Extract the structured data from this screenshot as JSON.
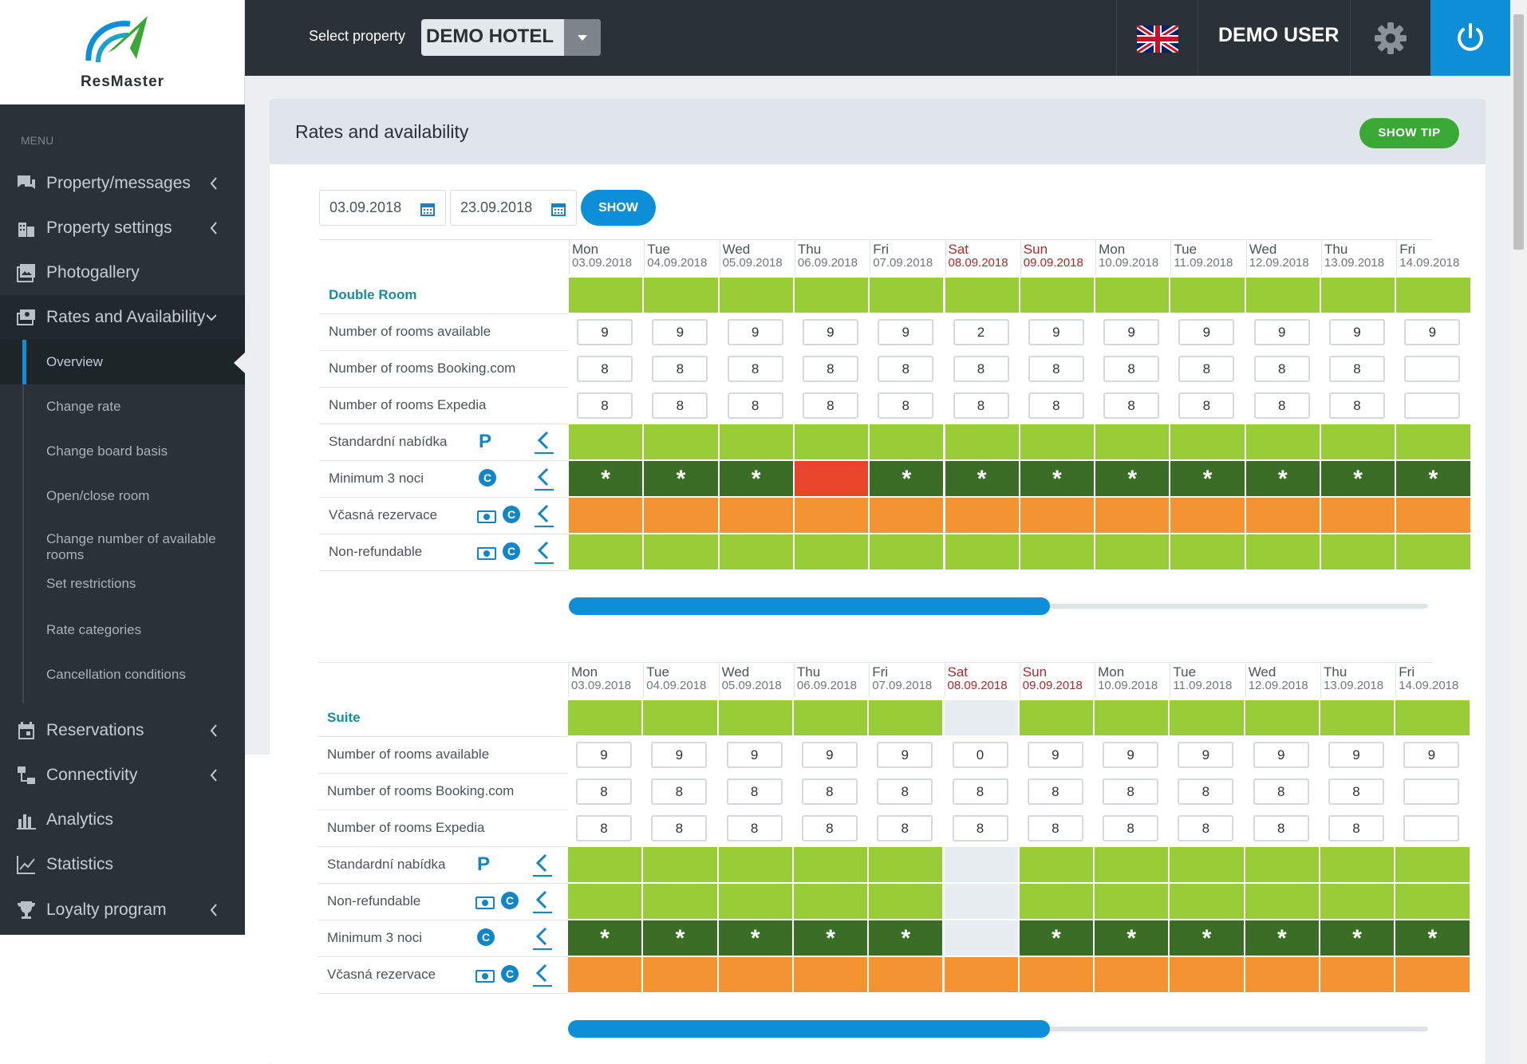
{
  "app": {
    "logo_text": "ResMaster",
    "property_label": "Select property",
    "property_value": "DEMO HOTEL",
    "user": "DEMO USER"
  },
  "sidebar": {
    "menu_label": "MENU",
    "items": [
      {
        "label": "Property/messages",
        "icon": "chat-icon",
        "chevron": true
      },
      {
        "label": "Property settings",
        "icon": "building-icon",
        "chevron": true
      },
      {
        "label": "Photogallery",
        "icon": "image-icon",
        "chevron": false
      },
      {
        "label": "Rates and Availability",
        "icon": "money-icon",
        "chevron": true,
        "expanded": true
      },
      {
        "label": "Reservations",
        "icon": "calendar-icon",
        "chevron": true
      },
      {
        "label": "Connectivity",
        "icon": "network-icon",
        "chevron": true
      },
      {
        "label": "Analytics",
        "icon": "analytics-icon",
        "chevron": false
      },
      {
        "label": "Statistics",
        "icon": "chart-line-icon",
        "chevron": false
      },
      {
        "label": "Loyalty program",
        "icon": "trophy-icon",
        "chevron": true
      }
    ],
    "subitems": [
      "Overview",
      "Change rate",
      "Change board basis",
      "Open/close room",
      "Change number of available rooms",
      "Set restrictions",
      "Rate categories",
      "Cancellation conditions"
    ],
    "active_subitem": "Overview"
  },
  "page": {
    "title": "Rates and availability",
    "tip_button": "SHOW TIP",
    "date_from": "03.09.2018",
    "date_to": "23.09.2018",
    "show_button": "SHOW"
  },
  "days": [
    {
      "dow": "Mon",
      "date": "03.09.2018",
      "weekend": false
    },
    {
      "dow": "Tue",
      "date": "04.09.2018",
      "weekend": false
    },
    {
      "dow": "Wed",
      "date": "05.09.2018",
      "weekend": false
    },
    {
      "dow": "Thu",
      "date": "06.09.2018",
      "weekend": false
    },
    {
      "dow": "Fri",
      "date": "07.09.2018",
      "weekend": false
    },
    {
      "dow": "Sat",
      "date": "08.09.2018",
      "weekend": true
    },
    {
      "dow": "Sun",
      "date": "09.09.2018",
      "weekend": true
    },
    {
      "dow": "Mon",
      "date": "10.09.2018",
      "weekend": false
    },
    {
      "dow": "Tue",
      "date": "11.09.2018",
      "weekend": false
    },
    {
      "dow": "Wed",
      "date": "12.09.2018",
      "weekend": false
    },
    {
      "dow": "Thu",
      "date": "13.09.2018",
      "weekend": false
    },
    {
      "dow": "Fri",
      "date": "14.09.2018",
      "weekend": false
    }
  ],
  "colors": {
    "green": "#98cd38",
    "dark_green": "#3a6e26",
    "red": "#e8452a",
    "orange": "#f39332",
    "closed": "#e7edf1",
    "accent": "#0d8fd8",
    "tip": "#3aa835"
  },
  "rooms": [
    {
      "name": "Double Room",
      "header_colors": [
        "g",
        "g",
        "g",
        "g",
        "g",
        "g",
        "g",
        "g",
        "g",
        "g",
        "g",
        "g"
      ],
      "available_label": "Number of rooms available",
      "available": [
        "9",
        "9",
        "9",
        "9",
        "9",
        "2",
        "9",
        "9",
        "9",
        "9",
        "9",
        "9"
      ],
      "booking_label": "Number of rooms Booking.com",
      "booking": [
        "8",
        "8",
        "8",
        "8",
        "8",
        "8",
        "8",
        "8",
        "8",
        "8",
        "8",
        ""
      ],
      "expedia_label": "Number of rooms Expedia",
      "expedia": [
        "8",
        "8",
        "8",
        "8",
        "8",
        "8",
        "8",
        "8",
        "8",
        "8",
        "8",
        ""
      ],
      "rates": [
        {
          "name": "Standardní nabídka",
          "icons": [
            "P"
          ],
          "colors": [
            "g",
            "g",
            "g",
            "g",
            "g",
            "g",
            "g",
            "g",
            "g",
            "g",
            "g",
            "g"
          ],
          "stars": false
        },
        {
          "name": "Minimum 3 noci",
          "icons": [
            "C"
          ],
          "colors": [
            "dg",
            "dg",
            "dg",
            "rd",
            "dg",
            "dg",
            "dg",
            "dg",
            "dg",
            "dg",
            "dg",
            "dg"
          ],
          "stars": true
        },
        {
          "name": "Včasná rezervace",
          "icons": [
            "M",
            "C"
          ],
          "colors": [
            "or",
            "or",
            "or",
            "or",
            "or",
            "or",
            "or",
            "or",
            "or",
            "or",
            "or",
            "or"
          ],
          "stars": false
        },
        {
          "name": "Non-refundable",
          "icons": [
            "M",
            "C"
          ],
          "colors": [
            "g",
            "g",
            "g",
            "g",
            "g",
            "g",
            "g",
            "g",
            "g",
            "g",
            "g",
            "g"
          ],
          "stars": false
        }
      ],
      "scroll_fraction": 0.56
    },
    {
      "name": "Suite",
      "header_colors": [
        "g",
        "g",
        "g",
        "g",
        "g",
        "gy",
        "g",
        "g",
        "g",
        "g",
        "g",
        "g"
      ],
      "available_label": "Number of rooms available",
      "available": [
        "9",
        "9",
        "9",
        "9",
        "9",
        "0",
        "9",
        "9",
        "9",
        "9",
        "9",
        "9"
      ],
      "booking_label": "Number of rooms Booking.com",
      "booking": [
        "8",
        "8",
        "8",
        "8",
        "8",
        "8",
        "8",
        "8",
        "8",
        "8",
        "8",
        ""
      ],
      "expedia_label": "Number of rooms Expedia",
      "expedia": [
        "8",
        "8",
        "8",
        "8",
        "8",
        "8",
        "8",
        "8",
        "8",
        "8",
        "8",
        ""
      ],
      "rates": [
        {
          "name": "Standardní nabídka",
          "icons": [
            "P"
          ],
          "colors": [
            "g",
            "g",
            "g",
            "g",
            "g",
            "gy",
            "g",
            "g",
            "g",
            "g",
            "g",
            "g"
          ],
          "stars": false
        },
        {
          "name": "Non-refundable",
          "icons": [
            "M",
            "C"
          ],
          "colors": [
            "g",
            "g",
            "g",
            "g",
            "g",
            "gy",
            "g",
            "g",
            "g",
            "g",
            "g",
            "g"
          ],
          "stars": false
        },
        {
          "name": "Minimum 3 noci",
          "icons": [
            "C"
          ],
          "colors": [
            "dg",
            "dg",
            "dg",
            "dg",
            "dg",
            "gy",
            "dg",
            "dg",
            "dg",
            "dg",
            "dg",
            "dg"
          ],
          "stars": true
        },
        {
          "name": "Včasná rezervace",
          "icons": [
            "M",
            "C"
          ],
          "colors": [
            "or",
            "or",
            "or",
            "or",
            "or",
            "or",
            "or",
            "or",
            "or",
            "or",
            "or",
            "or"
          ],
          "stars": false
        }
      ],
      "scroll_fraction": 0.56
    }
  ]
}
